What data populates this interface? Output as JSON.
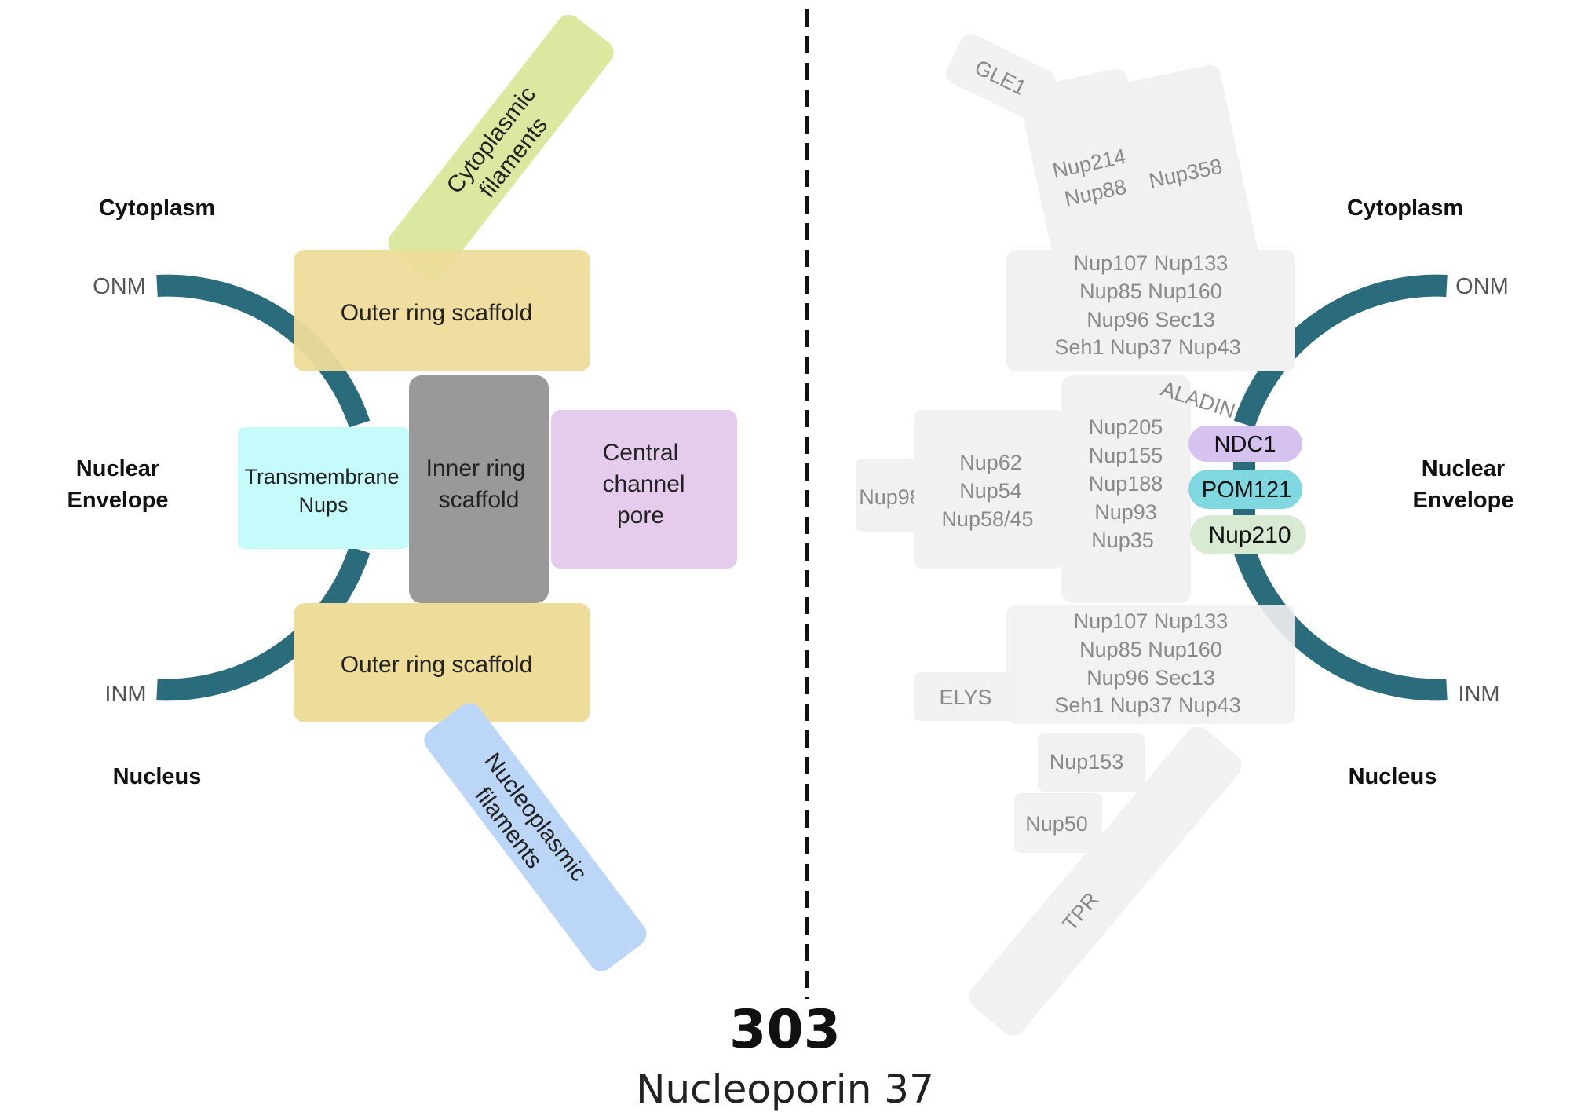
{
  "colors": {
    "envelope": "#2a6b7c",
    "outer_ring": "#eedc9a",
    "cytoplasmic_filaments": "#dbe9a0",
    "nucleoplasmic_filaments": "#bcd6f7",
    "transmembrane": "#c6fbfc",
    "inner_ring": "#999999",
    "central_channel": "#e6ccec",
    "ghost_block": "#f1f1f1",
    "ghost_text": "#8a8a8a",
    "ndc1": "#d6c2ef",
    "pom121": "#7fd8df",
    "nup210": "#d9ead3"
  },
  "left": {
    "cytoplasm": "Cytoplasm",
    "onm": "ONM",
    "nuclear": "Nuclear",
    "envelope": "Envelope",
    "inm": "INM",
    "nucleus": "Nucleus",
    "outer_ring_top": "Outer ring scaffold",
    "outer_ring_bottom": "Outer ring scaffold",
    "cyto_fil_1": "Cytoplasmic",
    "cyto_fil_2": "filaments",
    "nucleo_fil_1": "Nucleoplasmic",
    "nucleo_fil_2": "filaments",
    "transmembrane_1": "Transmembrane",
    "transmembrane_2": "Nups",
    "inner_ring_1": "Inner ring",
    "inner_ring_2": "scaffold",
    "central_1": "Central",
    "central_2": "channel",
    "central_3": "pore"
  },
  "right": {
    "cytoplasm": "Cytoplasm",
    "onm": "ONM",
    "nuclear": "Nuclear",
    "envelope": "Envelope",
    "inm": "INM",
    "nucleus": "Nucleus",
    "gle1": "GLE1",
    "nup214": "Nup214",
    "nup88": "Nup88",
    "nup358": "Nup358",
    "outer_top": [
      "Nup107 Nup133",
      "Nup85 Nup160",
      "Nup96 Sec13",
      "Seh1 Nup37 Nup43"
    ],
    "outer_bottom": [
      "Nup107 Nup133",
      "Nup85 Nup160",
      "Nup96 Sec13",
      "Seh1 Nup37 Nup43"
    ],
    "aladin": "ALADIN",
    "inner": [
      "Nup205",
      "Nup155",
      "Nup188",
      "Nup93",
      "Nup35"
    ],
    "central": [
      "Nup62",
      "Nup54",
      "Nup58/45"
    ],
    "nup98": "Nup98",
    "ndc1": "NDC1",
    "pom121": "POM121",
    "nup210": "Nup210",
    "elys": "ELYS",
    "nup153": "Nup153",
    "nup50": "Nup50",
    "tpr": "TPR"
  },
  "caption": {
    "number": "303",
    "name": "Nucleoporin 37"
  }
}
